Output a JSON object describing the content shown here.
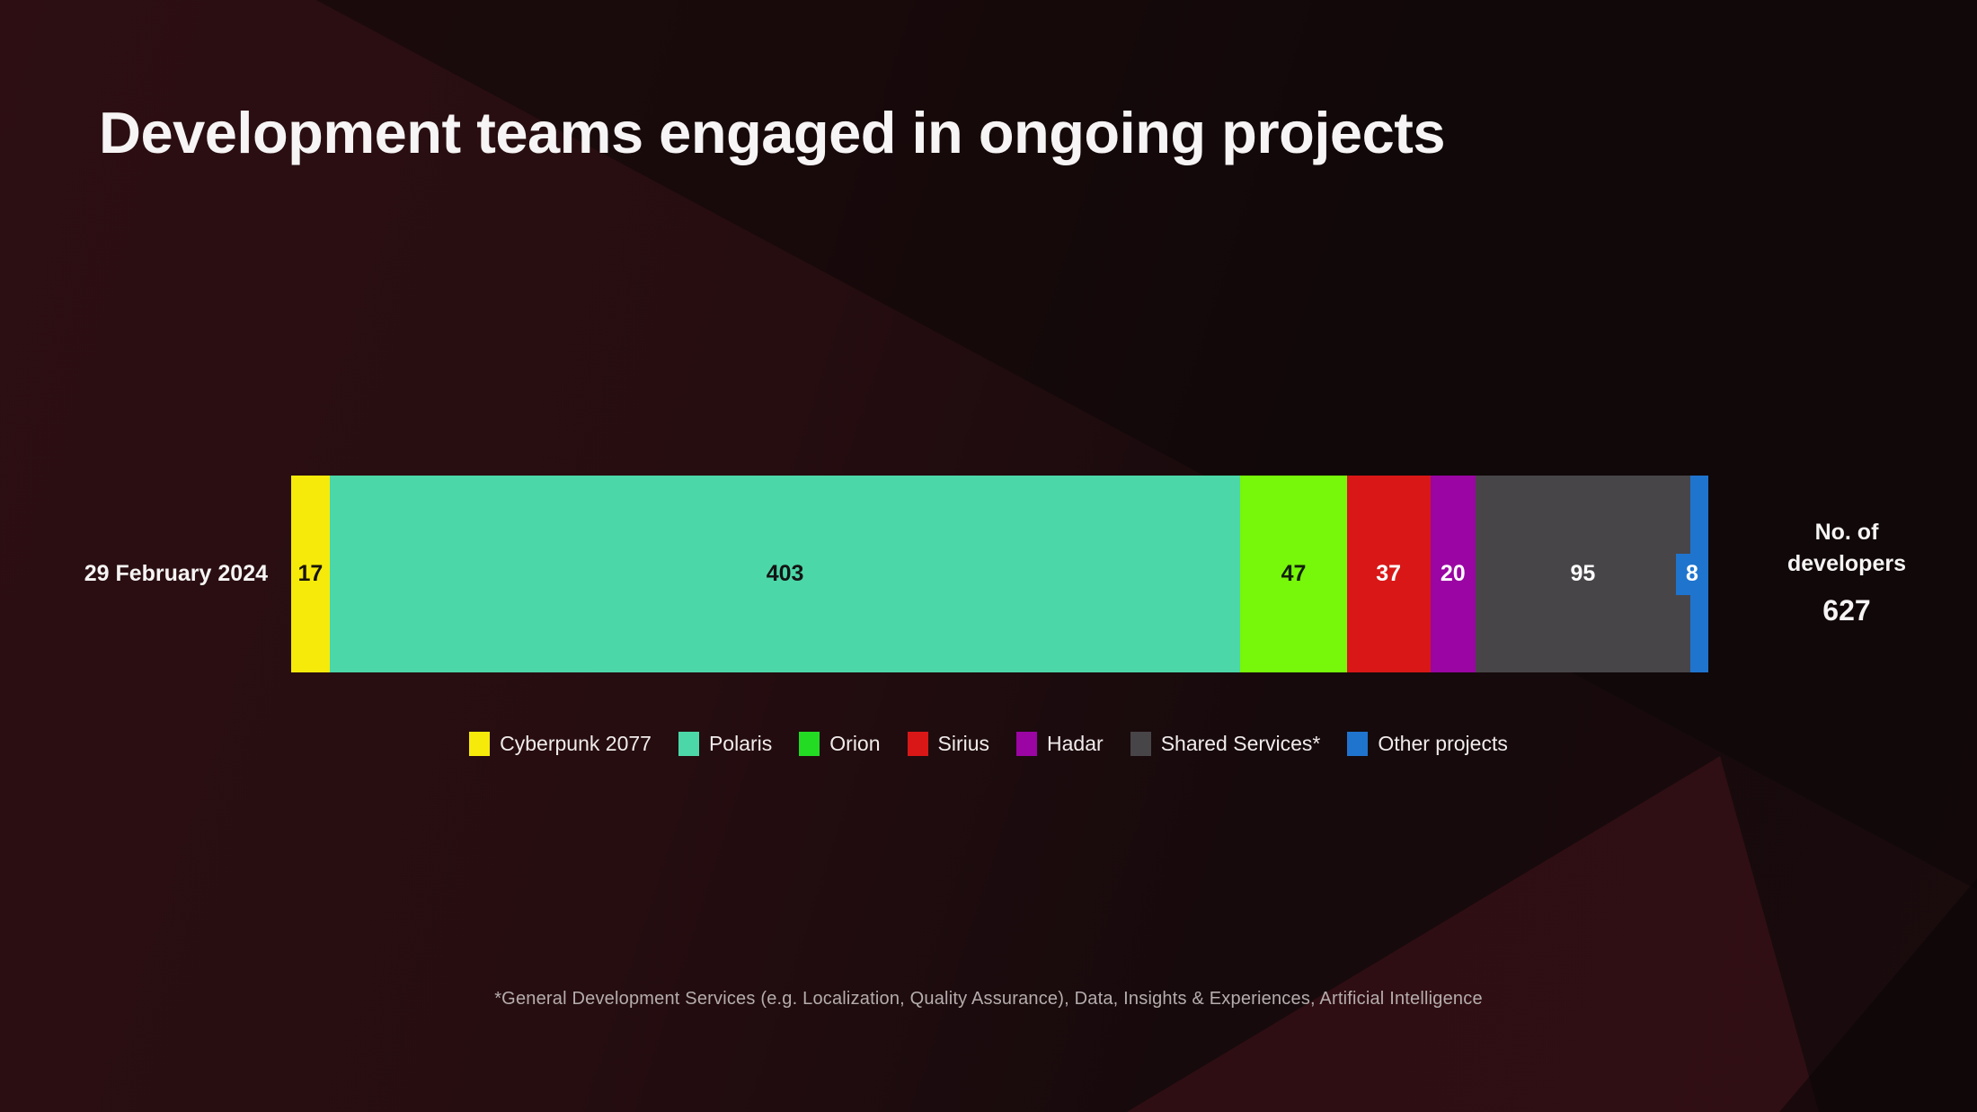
{
  "slide": {
    "title": "Development teams engaged in ongoing projects",
    "footnote": "*General Development Services (e.g. Localization, Quality Assurance), Data, Insights & Experiences, Artificial Intelligence"
  },
  "chart_data": {
    "type": "bar",
    "variant": "horizontal-stacked",
    "title": "Development teams engaged in ongoing projects",
    "row_label": "29 February 2024",
    "total_label_line1": "No. of",
    "total_label_line2": "developers",
    "total_value": "627",
    "xlim": [
      0,
      627
    ],
    "legend_position": "bottom-center",
    "grid": false,
    "categories": [
      "29 February 2024"
    ],
    "series": [
      {
        "name": "Cyberpunk 2077",
        "value": 17,
        "color": "#F6EA0B",
        "legend_color": "#F6EA0B",
        "text_color": "#171408",
        "label": "17"
      },
      {
        "name": "Polaris",
        "value": 403,
        "color": "#4CD7A8",
        "legend_color": "#4CD7A8",
        "text_color": "#141414",
        "label": "403"
      },
      {
        "name": "Orion",
        "value": 47,
        "color": "#77F70A",
        "legend_color": "#24DB24",
        "text_color": "#142008",
        "label": "47"
      },
      {
        "name": "Sirius",
        "value": 37,
        "color": "#D91717",
        "legend_color": "#D91717",
        "text_color": "#ffffff",
        "label": "37"
      },
      {
        "name": "Hadar",
        "value": 20,
        "color": "#9A05A3",
        "legend_color": "#9A05A3",
        "text_color": "#ffffff",
        "label": "20"
      },
      {
        "name": "Shared Services*",
        "value": 95,
        "color": "#484548",
        "legend_color": "#484548",
        "text_color": "#ffffff",
        "label": "95"
      },
      {
        "name": "Other projects",
        "value": 8,
        "color": "#1F74CE",
        "legend_color": "#1F74CE",
        "text_color": "#ffffff",
        "label": "8",
        "narrow": true
      }
    ]
  }
}
